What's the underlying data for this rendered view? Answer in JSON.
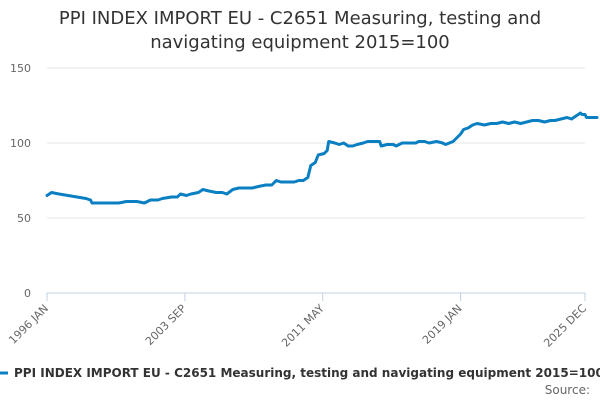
{
  "chart_data": {
    "type": "line",
    "title_line1": "PPI INDEX IMPORT EU - C2651 Measuring, testing and",
    "title_line2": "navigating equipment 2015=100",
    "ylim": [
      0,
      150
    ],
    "yticks": [
      "0",
      "50",
      "100",
      "150"
    ],
    "xlim": [
      "1996-01",
      "2025-12"
    ],
    "xticks": [
      {
        "label": "1996 JAN",
        "date": "1996-01"
      },
      {
        "label": "2003 SEP",
        "date": "2003-09"
      },
      {
        "label": "2011 MAY",
        "date": "2011-05"
      },
      {
        "label": "2019 JAN",
        "date": "2019-01"
      },
      {
        "label": "2025 DEC",
        "date": "2025-12"
      }
    ],
    "grid": true,
    "legend_position": "bottom",
    "series": [
      {
        "name": "PPI INDEX IMPORT EU - C2651 Measuring, testing and navigating equipment 2015=100",
        "color": "#0a7fc2",
        "points": [
          [
            "1996-01",
            65
          ],
          [
            "1996-04",
            67
          ],
          [
            "1996-09",
            66
          ],
          [
            "1997-03",
            65
          ],
          [
            "1997-09",
            64
          ],
          [
            "1998-03",
            63
          ],
          [
            "1998-06",
            62
          ],
          [
            "1998-07",
            60
          ],
          [
            "1998-12",
            60
          ],
          [
            "1999-06",
            60
          ],
          [
            "2000-01",
            60
          ],
          [
            "2000-06",
            61
          ],
          [
            "2001-01",
            61
          ],
          [
            "2001-06",
            60
          ],
          [
            "2001-10",
            62
          ],
          [
            "2002-03",
            62
          ],
          [
            "2002-06",
            63
          ],
          [
            "2002-12",
            64
          ],
          [
            "2003-04",
            64
          ],
          [
            "2003-06",
            66
          ],
          [
            "2003-10",
            65
          ],
          [
            "2004-01",
            66
          ],
          [
            "2004-06",
            67
          ],
          [
            "2004-09",
            69
          ],
          [
            "2005-01",
            68
          ],
          [
            "2005-06",
            67
          ],
          [
            "2005-10",
            67
          ],
          [
            "2006-01",
            66
          ],
          [
            "2006-05",
            69
          ],
          [
            "2006-09",
            70
          ],
          [
            "2007-01",
            70
          ],
          [
            "2007-06",
            70
          ],
          [
            "2007-10",
            71
          ],
          [
            "2008-03",
            72
          ],
          [
            "2008-07",
            72
          ],
          [
            "2008-10",
            75
          ],
          [
            "2009-01",
            74
          ],
          [
            "2009-06",
            74
          ],
          [
            "2009-10",
            74
          ],
          [
            "2010-01",
            75
          ],
          [
            "2010-04",
            75
          ],
          [
            "2010-07",
            77
          ],
          [
            "2010-09",
            85
          ],
          [
            "2010-12",
            87
          ],
          [
            "2011-02",
            92
          ],
          [
            "2011-06",
            93
          ],
          [
            "2011-08",
            95
          ],
          [
            "2011-09",
            101
          ],
          [
            "2012-01",
            100
          ],
          [
            "2012-04",
            99
          ],
          [
            "2012-07",
            100
          ],
          [
            "2012-10",
            98
          ],
          [
            "2013-01",
            98
          ],
          [
            "2013-04",
            99
          ],
          [
            "2013-08",
            100
          ],
          [
            "2013-11",
            101
          ],
          [
            "2014-04",
            101
          ],
          [
            "2014-07",
            101
          ],
          [
            "2014-08",
            98
          ],
          [
            "2014-12",
            99
          ],
          [
            "2015-04",
            99
          ],
          [
            "2015-06",
            98
          ],
          [
            "2015-10",
            100
          ],
          [
            "2016-02",
            100
          ],
          [
            "2016-07",
            100
          ],
          [
            "2016-09",
            101
          ],
          [
            "2017-01",
            101
          ],
          [
            "2017-04",
            100
          ],
          [
            "2017-09",
            101
          ],
          [
            "2018-01",
            100
          ],
          [
            "2018-03",
            99
          ],
          [
            "2018-08",
            101
          ],
          [
            "2018-11",
            104
          ],
          [
            "2019-01",
            106
          ],
          [
            "2019-03",
            109
          ],
          [
            "2019-06",
            110
          ],
          [
            "2019-09",
            112
          ],
          [
            "2019-12",
            113
          ],
          [
            "2020-05",
            112
          ],
          [
            "2020-09",
            113
          ],
          [
            "2021-01",
            113
          ],
          [
            "2021-05",
            114
          ],
          [
            "2021-09",
            113
          ],
          [
            "2022-01",
            114
          ],
          [
            "2022-05",
            113
          ],
          [
            "2022-09",
            114
          ],
          [
            "2023-01",
            115
          ],
          [
            "2023-05",
            115
          ],
          [
            "2023-09",
            114
          ],
          [
            "2024-01",
            115
          ],
          [
            "2024-04",
            115
          ],
          [
            "2024-08",
            116
          ],
          [
            "2024-12",
            117
          ],
          [
            "2025-03",
            116
          ],
          [
            "2025-06",
            118
          ],
          [
            "2025-09",
            120
          ],
          [
            "2025-10",
            119
          ],
          [
            "2025-11",
            119
          ],
          [
            "2025-12",
            119
          ],
          [
            "2026-01",
            117
          ],
          [
            "2026-04",
            117
          ],
          [
            "2026-08",
            117
          ]
        ]
      }
    ],
    "source_label": "Source:"
  }
}
